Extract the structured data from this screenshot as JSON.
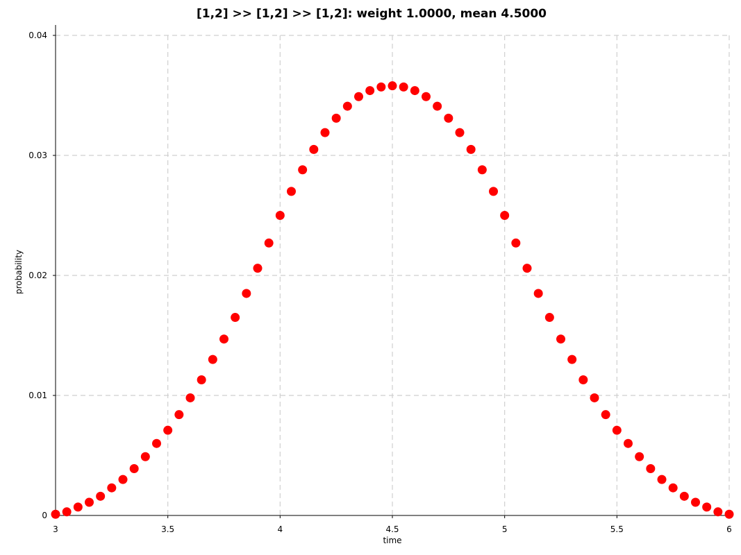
{
  "chart_data": {
    "type": "scatter",
    "title": "[1,2] >> [1,2] >> [1,2]: weight 1.0000, mean   4.5000",
    "xlabel": "time",
    "ylabel": "probability",
    "xlim": [
      3,
      6
    ],
    "ylim": [
      0,
      0.04
    ],
    "x_ticks": [
      "3",
      "3.5",
      "4",
      "4.5",
      "5",
      "5.5",
      "6"
    ],
    "y_ticks": [
      "0",
      "0.01",
      "0.02",
      "0.03",
      "0.04"
    ],
    "grid": true,
    "marker_color": "#ff0000",
    "points": {
      "x": [
        3.0,
        3.05,
        3.1,
        3.15,
        3.2,
        3.25,
        3.3,
        3.35,
        3.4,
        3.45,
        3.5,
        3.55,
        3.6,
        3.65,
        3.7,
        3.75,
        3.8,
        3.85,
        3.9,
        3.95,
        4.0,
        4.05,
        4.1,
        4.15,
        4.2,
        4.25,
        4.3,
        4.35,
        4.4,
        4.45,
        4.5,
        4.55,
        4.6,
        4.65,
        4.7,
        4.75,
        4.8,
        4.85,
        4.9,
        4.95,
        5.0,
        5.05,
        5.1,
        5.15,
        5.2,
        5.25,
        5.3,
        5.35,
        5.4,
        5.45,
        5.5,
        5.55,
        5.6,
        5.65,
        5.7,
        5.75,
        5.8,
        5.85,
        5.9,
        5.95,
        6.0
      ],
      "y": [
        0.0001,
        0.0003,
        0.0007,
        0.0011,
        0.0016,
        0.0023,
        0.003,
        0.0039,
        0.0049,
        0.006,
        0.0071,
        0.0084,
        0.0098,
        0.0113,
        0.013,
        0.0147,
        0.0165,
        0.0185,
        0.0206,
        0.0227,
        0.025,
        0.027,
        0.0288,
        0.0305,
        0.0319,
        0.0331,
        0.0341,
        0.0349,
        0.0354,
        0.0357,
        0.0358,
        0.0357,
        0.0354,
        0.0349,
        0.0341,
        0.0331,
        0.0319,
        0.0305,
        0.0288,
        0.027,
        0.025,
        0.0227,
        0.0206,
        0.0185,
        0.0165,
        0.0147,
        0.013,
        0.0113,
        0.0098,
        0.0084,
        0.0071,
        0.006,
        0.0049,
        0.0039,
        0.003,
        0.0023,
        0.0016,
        0.0011,
        0.0007,
        0.0003,
        0.0001
      ]
    }
  }
}
